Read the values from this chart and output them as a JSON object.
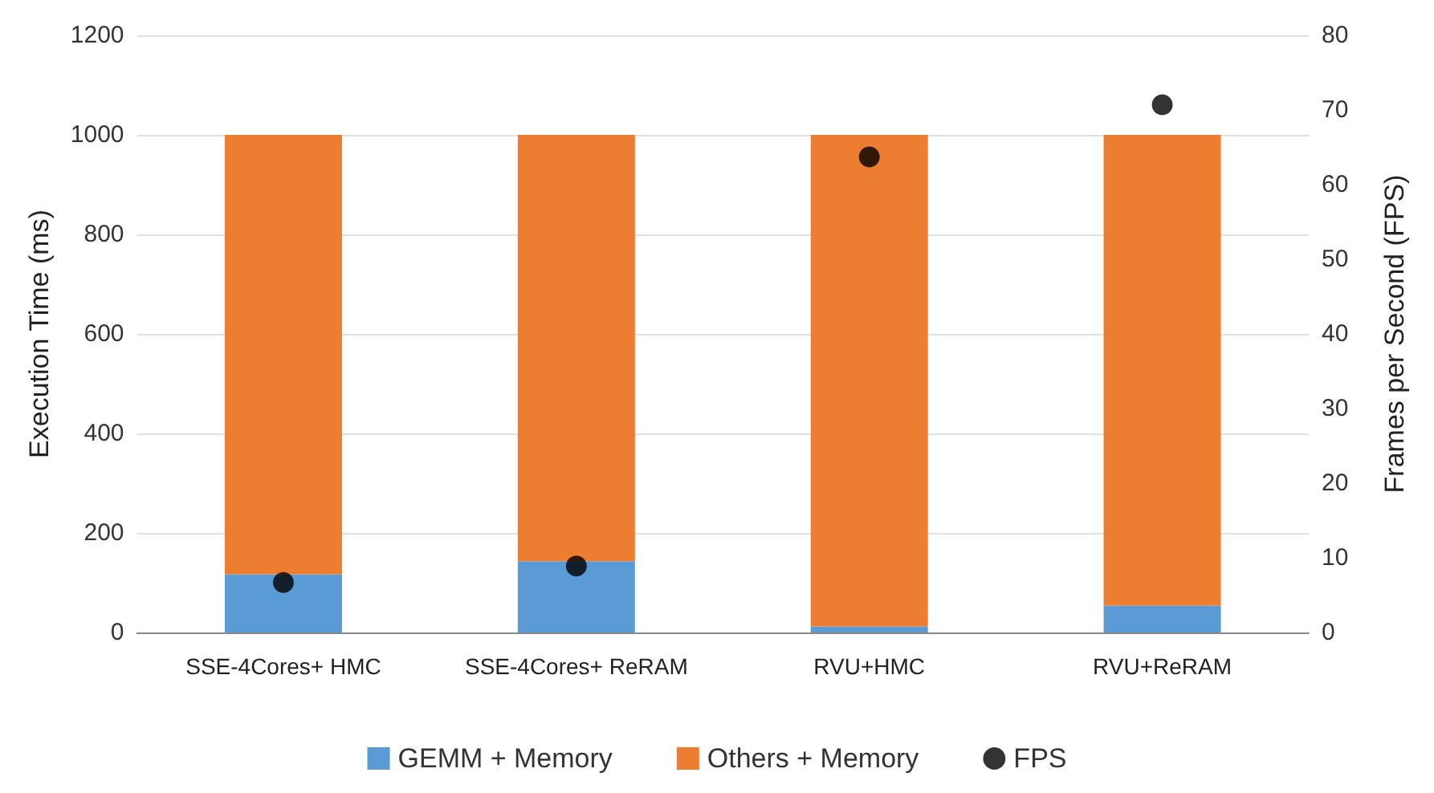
{
  "chart_data": {
    "type": "bar",
    "stacked": true,
    "categories": [
      "SSE-4Cores+ HMC",
      "SSE-4Cores+ ReRAM",
      "RVU+HMC",
      "RVU+ReRAM"
    ],
    "series": [
      {
        "name": "GEMM + Memory",
        "color": "#5b9bd5",
        "values": [
          117,
          143,
          12,
          54
        ]
      },
      {
        "name": "Others + Memory",
        "color": "#ed7d31",
        "values": [
          883,
          857,
          988,
          946
        ]
      },
      {
        "name": "FPS",
        "type": "scatter",
        "axis": "y2",
        "color": "#000000",
        "values": [
          6.7,
          8.9,
          63.7,
          70.7
        ]
      }
    ],
    "ylabel": "Execution Time (ms)",
    "y2label": "Frames per Second (FPS)",
    "ylim": [
      0,
      1200
    ],
    "yticks": [
      0,
      200,
      400,
      600,
      800,
      1000,
      1200
    ],
    "y2lim": [
      0,
      80
    ],
    "y2ticks": [
      0,
      10,
      20,
      30,
      40,
      50,
      60,
      70,
      80
    ],
    "grid": "y",
    "legend": "bottom",
    "marker": "circle"
  }
}
